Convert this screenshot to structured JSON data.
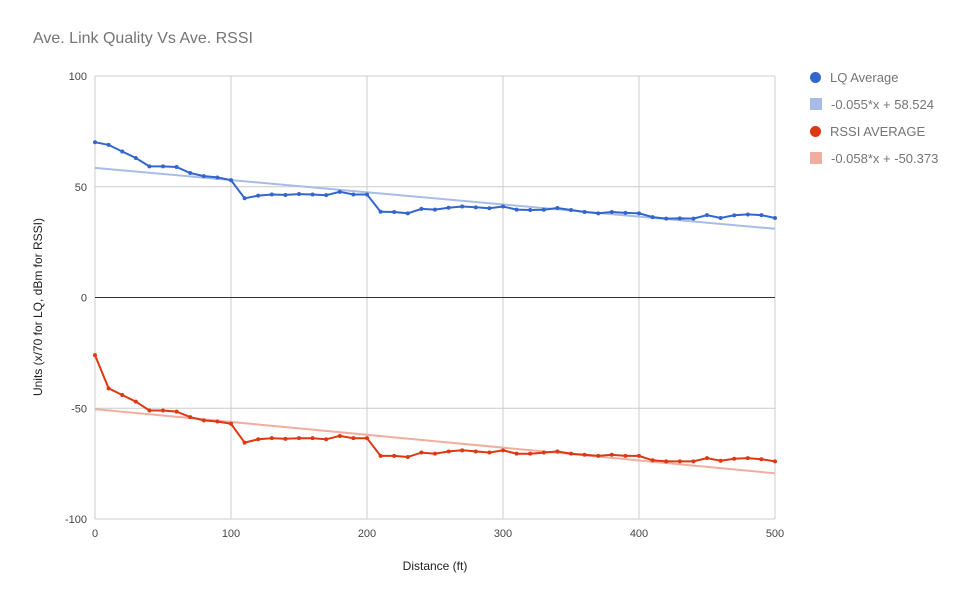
{
  "chart_data": {
    "type": "line",
    "title": "Ave. Link Quality Vs Ave. RSSI",
    "xlabel": "Distance (ft)",
    "ylabel": "Units (x/70 for LQ, dBm for RSSI)",
    "xlim": [
      0,
      500
    ],
    "ylim": [
      -100,
      100
    ],
    "x_ticks": [
      "0",
      "100",
      "200",
      "300",
      "400",
      "500"
    ],
    "y_ticks": [
      "100",
      "50",
      "0",
      "-50",
      "-100"
    ],
    "grid": true,
    "legend_position": "right",
    "x": [
      0,
      10,
      20,
      30,
      40,
      50,
      60,
      70,
      80,
      90,
      100,
      110,
      120,
      130,
      140,
      150,
      160,
      170,
      180,
      190,
      200,
      210,
      220,
      230,
      240,
      250,
      260,
      270,
      280,
      290,
      300,
      310,
      320,
      330,
      340,
      350,
      360,
      370,
      380,
      390,
      400,
      410,
      420,
      430,
      440,
      450,
      460,
      470,
      480,
      490,
      500
    ],
    "series": [
      {
        "name": "LQ Average",
        "color": "#3366cc",
        "values": [
          70.1,
          68.9,
          65.9,
          63.0,
          59.2,
          59.2,
          58.9,
          56.2,
          54.8,
          54.2,
          53.0,
          44.8,
          46.0,
          46.5,
          46.3,
          46.7,
          46.5,
          46.2,
          47.7,
          46.5,
          46.5,
          38.7,
          38.6,
          38.0,
          40.0,
          39.7,
          40.5,
          41.1,
          40.7,
          40.3,
          41.1,
          39.7,
          39.5,
          39.6,
          40.4,
          39.5,
          38.6,
          38.0,
          38.6,
          38.2,
          38.0,
          36.3,
          35.6,
          35.7,
          35.6,
          37.2,
          35.9,
          37.1,
          37.5,
          37.2,
          35.9
        ]
      },
      {
        "name": "RSSI AVERAGE",
        "color": "#dc3912",
        "values": [
          -26.0,
          -41.0,
          -44.0,
          -47.0,
          -51.0,
          -51.0,
          -51.5,
          -54.0,
          -55.5,
          -56.0,
          -57.0,
          -65.5,
          -64.0,
          -63.5,
          -63.8,
          -63.5,
          -63.5,
          -64.0,
          -62.5,
          -63.5,
          -63.5,
          -71.5,
          -71.5,
          -72.0,
          -70.0,
          -70.5,
          -69.5,
          -69.0,
          -69.5,
          -70.0,
          -69.0,
          -70.5,
          -70.5,
          -70.0,
          -69.5,
          -70.5,
          -71.0,
          -71.5,
          -71.0,
          -71.5,
          -71.5,
          -73.5,
          -74.0,
          -74.0,
          -74.0,
          -72.5,
          -73.7,
          -72.8,
          -72.5,
          -73.0,
          -74.0
        ]
      }
    ],
    "trendlines": [
      {
        "name": "-0.055*x + 58.524",
        "color": "#a7bde8",
        "slope": -0.055,
        "intercept": 58.524
      },
      {
        "name": "-0.058*x + -50.373",
        "color": "#f1aea0",
        "slope": -0.058,
        "intercept": -50.373
      }
    ]
  },
  "legend": [
    {
      "label": "LQ Average",
      "color": "#3366cc",
      "shape": "dot"
    },
    {
      "label": "-0.055*x + 58.524",
      "color": "#a7bde8",
      "shape": "square"
    },
    {
      "label": "RSSI AVERAGE",
      "color": "#dc3912",
      "shape": "dot"
    },
    {
      "label": "-0.058*x + -50.373",
      "color": "#f1aea0",
      "shape": "square"
    }
  ]
}
